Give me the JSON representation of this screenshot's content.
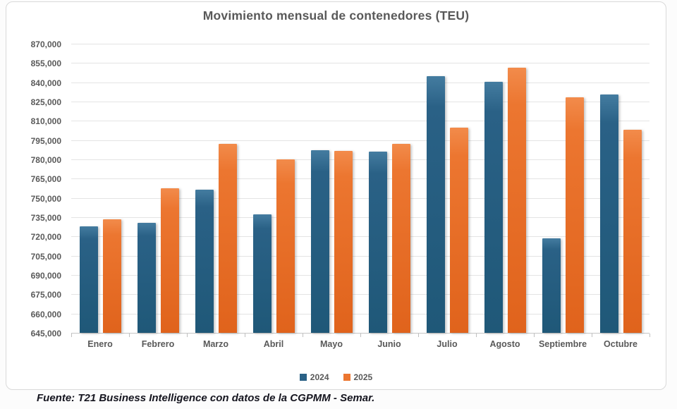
{
  "title": "Movimiento mensual de contenedores (TEU)",
  "source_note": "Fuente: T21 Business Intelligence con datos de la CGPMM - Semar.",
  "colors": {
    "series_2024": "#2a6186",
    "series_2025": "#ec7630",
    "axis_text": "#595959",
    "gridline": "#e4e4e4",
    "frame_border": "#d9d9d9"
  },
  "chart_data": {
    "type": "bar",
    "title": "Movimiento mensual de contenedores (TEU)",
    "categories": [
      "Enero",
      "Febrero",
      "Marzo",
      "Abril",
      "Mayo",
      "Junio",
      "Julio",
      "Agosto",
      "Septiembre",
      "Octubre"
    ],
    "series": [
      {
        "name": "2024",
        "color": "#2a6186",
        "values": [
          728000,
          730500,
          756500,
          737000,
          787000,
          786000,
          845000,
          840500,
          718500,
          830500
        ]
      },
      {
        "name": "2025",
        "color": "#ec7630",
        "values": [
          733500,
          757500,
          792000,
          780000,
          786500,
          792000,
          804500,
          851500,
          828500,
          803000
        ]
      }
    ],
    "xlabel": "",
    "ylabel": "",
    "ylim": [
      645000,
      870000
    ],
    "ytick_step": 15000,
    "grid": true,
    "legend_position": "bottom",
    "legend": [
      "2024",
      "2025"
    ]
  }
}
